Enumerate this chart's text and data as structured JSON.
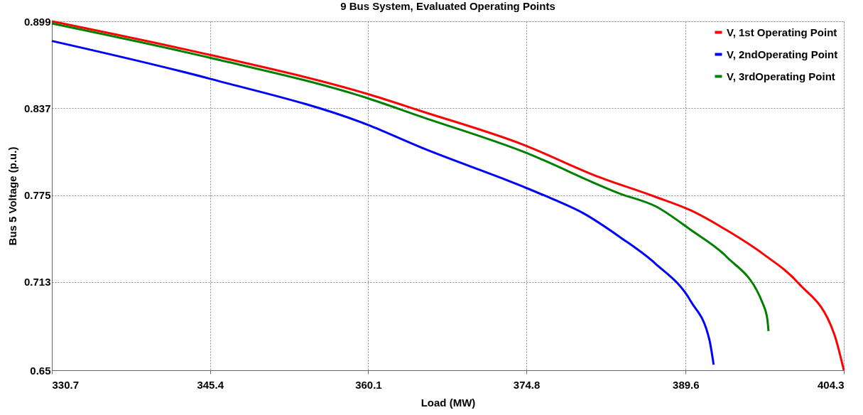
{
  "chart_data": {
    "type": "line",
    "title": "9 Bus System, Evaluated Operating Points",
    "xlabel": "Load (MW)",
    "ylabel": "Bus 5 Voltage (p.u.)",
    "xlim": [
      330.7,
      404.3
    ],
    "xticks": [
      330.7,
      345.4,
      360.1,
      374.8,
      389.6,
      404.3
    ],
    "ylim": [
      0.65,
      0.899
    ],
    "yticks": [
      0.65,
      0.713,
      0.775,
      0.837,
      0.899
    ],
    "grid": true,
    "legend": "top right",
    "marker": "none",
    "line_style": "solid",
    "series": [
      {
        "name": "V, 1st Operating Point",
        "color": "#ff0000",
        "x": [
          330.7,
          345.4,
          360.1,
          365.0,
          374.5,
          381.5,
          386.7,
          390.1,
          393.4,
          396.8,
          400.1,
          403.4,
          404.3
        ],
        "values": [
          0.899,
          0.875,
          0.847,
          0.835,
          0.811,
          0.788,
          0.774,
          0.764,
          0.75,
          0.733,
          0.712,
          0.676,
          0.65
        ]
      },
      {
        "name": "V, 2ndOperating Point",
        "color": "#0000ff",
        "x": [
          330.7,
          345.4,
          360.1,
          365.0,
          374.5,
          377.3,
          380.1,
          383.5,
          386.8,
          390.1,
          391.8,
          392.2
        ],
        "values": [
          0.885,
          0.858,
          0.825,
          0.809,
          0.781,
          0.772,
          0.762,
          0.745,
          0.726,
          0.699,
          0.672,
          0.654
        ]
      },
      {
        "name": "V, 3rdOperating Point",
        "color": "#008000",
        "x": [
          330.7,
          345.4,
          360.1,
          365.0,
          374.5,
          383.5,
          386.8,
          390.1,
          393.4,
          396.8,
          397.2,
          397.3
        ],
        "values": [
          0.8975,
          0.873,
          0.844,
          0.831,
          0.806,
          0.776,
          0.767,
          0.75,
          0.731,
          0.697,
          0.686,
          0.678
        ]
      }
    ]
  }
}
